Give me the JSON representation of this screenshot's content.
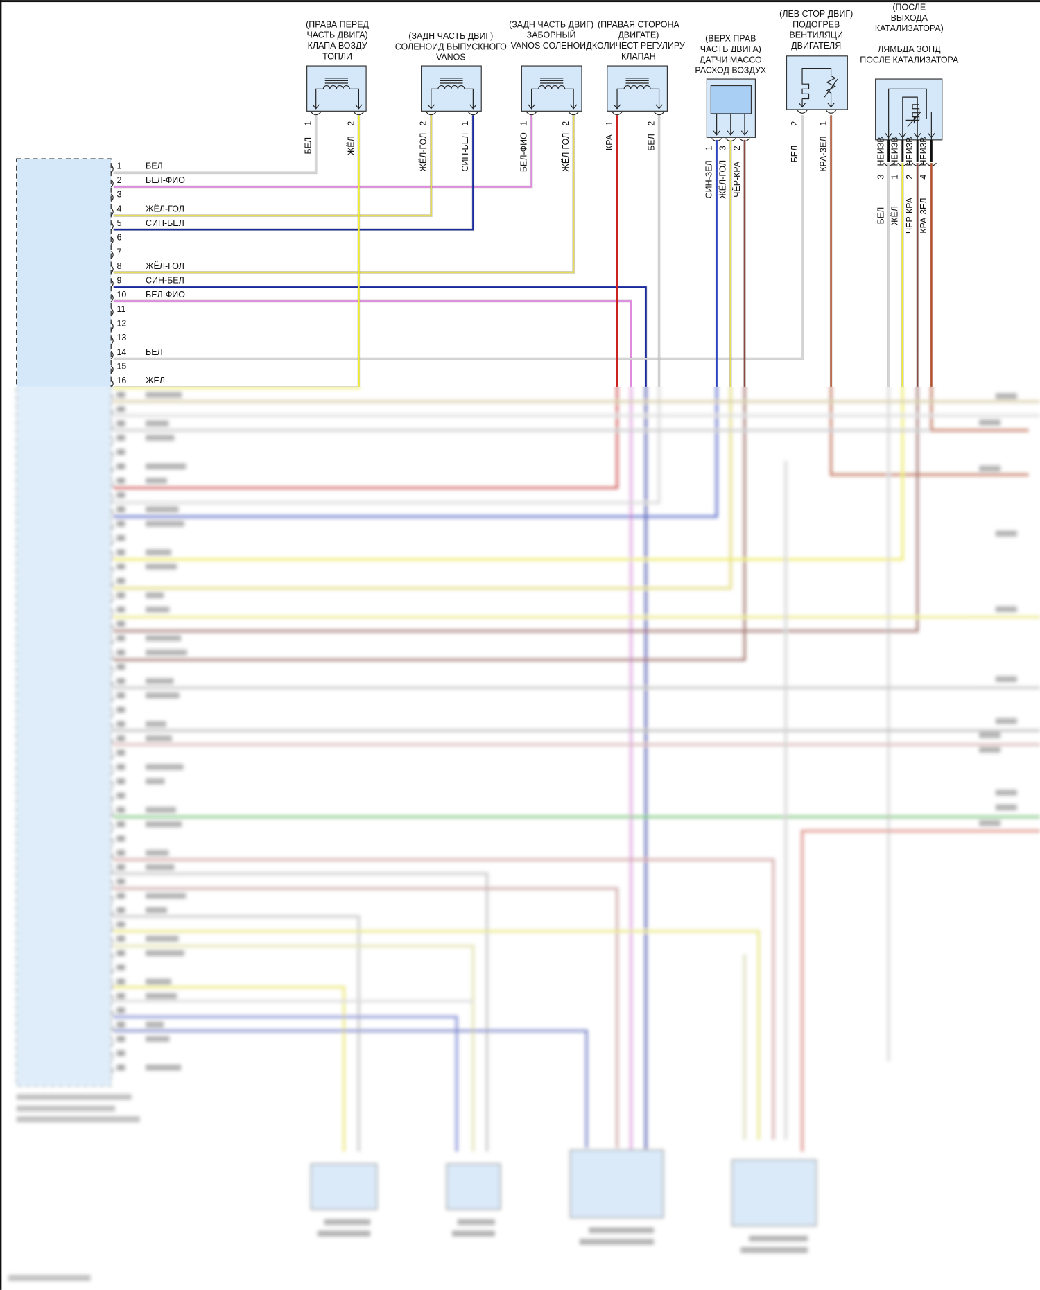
{
  "wire_colors": {
    "БЕЛ": "#d6d6d6",
    "БЕЛ-ФИО": "#e08ae0",
    "ЖЁЛ-ГОЛ": "#e6dc58",
    "СИН-БЕЛ": "#1a2a9e",
    "ЖЁЛ": "#f4f030",
    "КРА": "#cc2222",
    "СИН-ЗЕЛ": "#2a44c4",
    "ЧЁР-КРА": "#8a4a40",
    "КРА-ЗЕЛ": "#b8502c"
  },
  "module": {
    "pins": [
      {
        "n": "1",
        "wire": "БЕЛ"
      },
      {
        "n": "2",
        "wire": "БЕЛ-ФИО"
      },
      {
        "n": "3",
        "wire": ""
      },
      {
        "n": "4",
        "wire": "ЖЁЛ-ГОЛ"
      },
      {
        "n": "5",
        "wire": "СИН-БЕЛ"
      },
      {
        "n": "6",
        "wire": ""
      },
      {
        "n": "7",
        "wire": ""
      },
      {
        "n": "8",
        "wire": "ЖЁЛ-ГОЛ"
      },
      {
        "n": "9",
        "wire": "СИН-БЕЛ"
      },
      {
        "n": "10",
        "wire": "БЕЛ-ФИО"
      },
      {
        "n": "11",
        "wire": ""
      },
      {
        "n": "12",
        "wire": ""
      },
      {
        "n": "13",
        "wire": ""
      },
      {
        "n": "14",
        "wire": "БЕЛ"
      },
      {
        "n": "15",
        "wire": ""
      },
      {
        "n": "16",
        "wire": "ЖЁЛ"
      }
    ]
  },
  "components": [
    {
      "title": [
        "(ПРАВА ПЕРЕД",
        "ЧАСТЬ ДВИГА)",
        "КЛАПА ВОЗДУ",
        "ТОПЛИ"
      ],
      "pins": [
        {
          "n": "1",
          "wire": "БЕЛ"
        },
        {
          "n": "2",
          "wire": "ЖЁЛ"
        }
      ]
    },
    {
      "title": [
        "(ЗАДН ЧАСТЬ ДВИГ)",
        "СОЛЕНОИД ВЫПУСКНОГО",
        "VANOS"
      ],
      "pins": [
        {
          "n": "2",
          "wire": "ЖЁЛ-ГОЛ"
        },
        {
          "n": "1",
          "wire": "СИН-БЕЛ"
        }
      ]
    },
    {
      "title": [
        "(ЗАДН ЧАСТЬ ДВИГ)",
        "ЗАБОРНЫЙ",
        "VANOS СОЛЕНОИД"
      ],
      "pins": [
        {
          "n": "1",
          "wire": "БЕЛ-ФИО"
        },
        {
          "n": "2",
          "wire": "ЖЁЛ-ГОЛ"
        }
      ]
    },
    {
      "title": [
        "(ПРАВАЯ СТОРОНА",
        "ДВИГАТЕ)",
        "КОЛИЧЕСТ РЕГУЛИРУ",
        "КЛАПАН"
      ],
      "pins": [
        {
          "n": "1",
          "wire": "КРА"
        },
        {
          "n": "2",
          "wire": "БЕЛ"
        }
      ]
    },
    {
      "title": [
        "(ВЕРХ ПРАВ",
        "ЧАСТЬ ДВИГА)",
        "ДАТЧИ МАССО",
        "РАСХОД ВОЗДУХ"
      ],
      "pins": [
        {
          "n": "1",
          "wire": "СИН-ЗЕЛ"
        },
        {
          "n": "3",
          "wire": "ЖЁЛ-ГОЛ"
        },
        {
          "n": "2",
          "wire": "ЧЁР-КРА"
        }
      ]
    },
    {
      "title": [
        "(ЛЕВ СТОР ДВИГ)",
        "ПОДОГРЕВ",
        "ВЕНТИЛЯЦИ",
        "ДВИГАТЕЛЯ"
      ],
      "pins": [
        {
          "n": "2",
          "wire": "БЕЛ"
        },
        {
          "n": "1",
          "wire": "КРА-ЗЕЛ"
        }
      ]
    },
    {
      "title": [
        "(ПОСЛЕ",
        "ВЫХОДА",
        "КАТАЛИЗАТОРА)",
        "ЛЯМБДА ЗОНД",
        "ПОСЛЕ КАТАЛИЗАТОРА"
      ],
      "pins": [
        {
          "n": "3",
          "wire": "БЕЛ",
          "tag": "НЕИЗВ"
        },
        {
          "n": "1",
          "wire": "ЖЁЛ",
          "tag": "НЕИЗВ"
        },
        {
          "n": "2",
          "wire": "ЧЁР-КРА",
          "tag": "НЕИЗВ"
        },
        {
          "n": "4",
          "wire": "КРА-ЗЕЛ",
          "tag": "НЕИЗВ"
        }
      ]
    }
  ]
}
